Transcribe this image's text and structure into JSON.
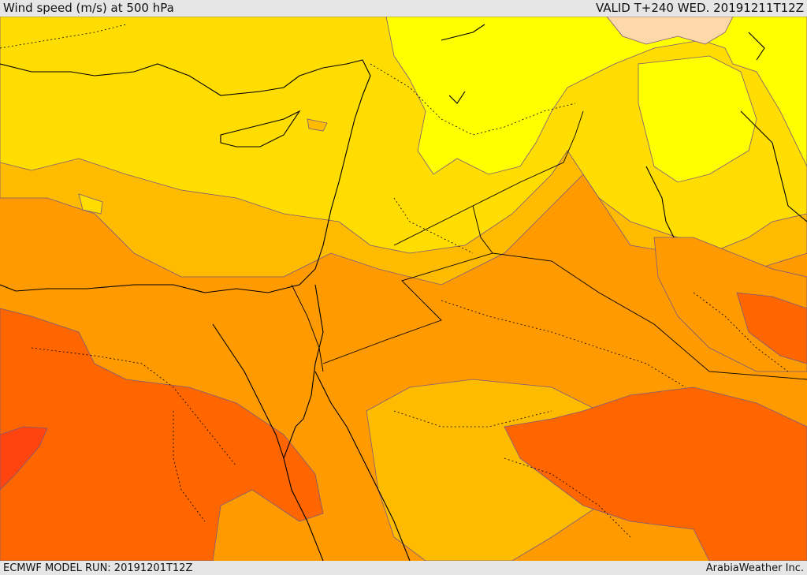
{
  "header": {
    "title": "Wind speed (m/s) at 500 hPa",
    "valid": "VALID T+240 WED. 20191211T12Z"
  },
  "footer": {
    "run": "ECMWF MODEL RUN: 20191201T12Z",
    "brand": "ArabiaWeather Inc."
  },
  "palette": {
    "band_pale": "#fdd8a8",
    "band_yellow": "#ffff00",
    "band_gold": "#ffdd00",
    "band_amber": "#ffbb00",
    "band_orange": "#ff9a00",
    "band_dark_orange": "#ff6600",
    "band_red_orange": "#ff4410",
    "contour_line": "#7a5a7a",
    "coastline": "#000000"
  }
}
